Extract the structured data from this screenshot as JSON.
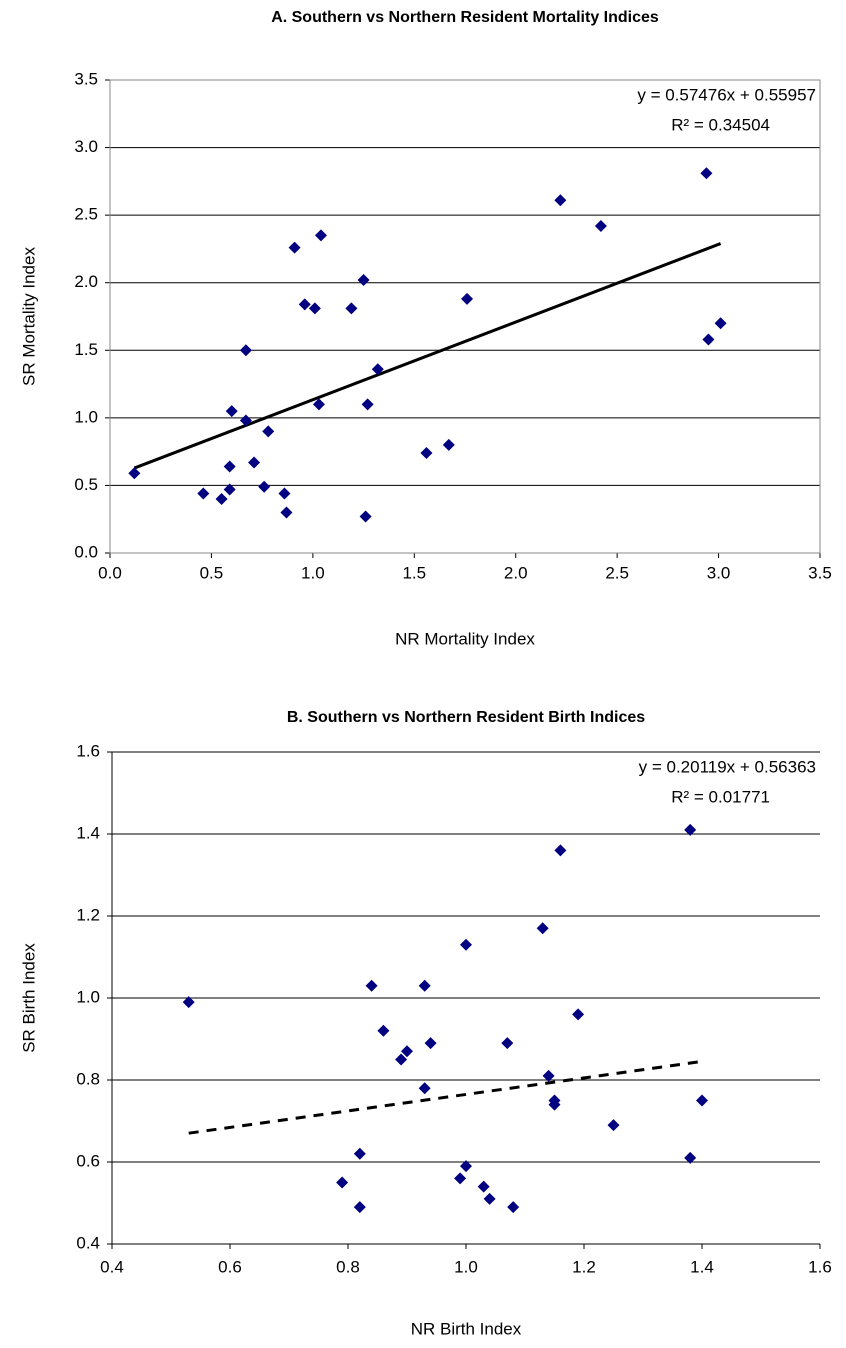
{
  "chart_data": [
    {
      "type": "scatter",
      "title": "A. Southern vs Northern Resident Mortality Indices",
      "x_label": "NR Mortality Index",
      "y_label": "SR Mortality Index",
      "xlim": [
        0,
        3.5
      ],
      "ylim": [
        0,
        3.5
      ],
      "xticks": [
        {
          "value": 0,
          "label": "0.0"
        },
        0.5,
        {
          "value": 1,
          "label": "1.0"
        },
        1.5,
        {
          "value": 2,
          "label": "2.0"
        },
        2.5,
        {
          "value": 3,
          "label": "3.0"
        },
        3.5
      ],
      "yticks": [
        {
          "value": 0,
          "label": "0.0"
        },
        0.5,
        {
          "value": 1,
          "label": "1.0"
        },
        1.5,
        {
          "value": 2,
          "label": "2.0"
        },
        2.5,
        {
          "value": 3,
          "label": "3.0"
        },
        3.5
      ],
      "grid": true,
      "plot_border": true,
      "color": "#000080",
      "x": [
        0.12,
        0.46,
        0.55,
        0.59,
        0.59,
        0.6,
        0.67,
        0.67,
        0.71,
        0.76,
        0.78,
        0.86,
        0.87,
        0.91,
        0.96,
        1.01,
        1.04,
        1.03,
        1.19,
        1.25,
        1.26,
        1.27,
        1.32,
        1.56,
        1.67,
        1.76,
        2.22,
        2.42,
        2.94,
        2.95,
        3.01
      ],
      "values": [
        0.59,
        0.44,
        0.4,
        0.64,
        0.47,
        1.05,
        1.5,
        0.98,
        0.67,
        0.49,
        0.9,
        0.44,
        0.3,
        2.26,
        1.84,
        1.81,
        2.35,
        1.1,
        1.81,
        2.02,
        0.27,
        1.1,
        1.36,
        0.74,
        0.8,
        1.88,
        2.61,
        2.42,
        2.81,
        1.58,
        1.7
      ],
      "trendline": {
        "slope": 0.57476,
        "intercept": 0.55957,
        "line_style": "solid",
        "equation": "y = 0.57476x + 0.55957",
        "r_squared": "R² = 0.34504"
      }
    },
    {
      "type": "scatter",
      "title": "B. Southern vs Northern Resident Birth Indices",
      "x_label": "NR Birth Index",
      "y_label": "SR Birth Index",
      "xlim": [
        0.4,
        1.6
      ],
      "ylim": [
        0.4,
        1.6
      ],
      "xticks": [
        0.4,
        0.6,
        0.8,
        {
          "value": 1,
          "label": "1.0"
        },
        1.2,
        1.4,
        1.6
      ],
      "yticks": [
        0.4,
        0.6,
        0.8,
        {
          "value": 1,
          "label": "1.0"
        },
        1.2,
        1.4,
        1.6
      ],
      "grid": true,
      "plot_border": false,
      "color": "#000080",
      "x": [
        0.53,
        0.79,
        0.82,
        0.82,
        0.84,
        0.86,
        0.89,
        0.9,
        0.93,
        0.93,
        0.94,
        0.99,
        1.0,
        1.0,
        1.03,
        1.04,
        1.07,
        1.08,
        1.13,
        1.14,
        1.15,
        1.15,
        1.16,
        1.19,
        1.25,
        1.38,
        1.38,
        1.4
      ],
      "values": [
        0.99,
        0.55,
        0.62,
        0.49,
        1.03,
        0.92,
        0.85,
        0.87,
        1.03,
        0.78,
        0.89,
        0.56,
        0.59,
        1.13,
        0.54,
        0.51,
        0.89,
        0.49,
        1.17,
        0.81,
        0.75,
        0.74,
        1.36,
        0.96,
        0.69,
        1.41,
        0.61,
        0.75
      ],
      "trendline": {
        "slope": 0.20119,
        "intercept": 0.56363,
        "line_style": "dashed",
        "equation": "y = 0.20119x + 0.56363",
        "r_squared": "R² = 0.01771"
      }
    }
  ]
}
